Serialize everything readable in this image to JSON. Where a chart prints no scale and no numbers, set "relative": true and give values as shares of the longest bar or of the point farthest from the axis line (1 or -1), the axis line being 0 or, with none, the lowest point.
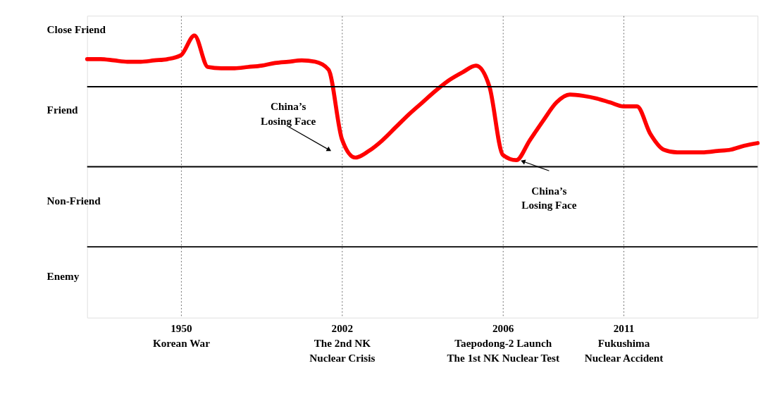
{
  "chart_data": {
    "type": "line",
    "relative": true,
    "categories": [
      null,
      null,
      null,
      null,
      null,
      null,
      null,
      "1950\nKorean War",
      null,
      null,
      null,
      null,
      null,
      null,
      null,
      null,
      null,
      null,
      null,
      "2002\nThe 2nd NK\nNuclear Crisis",
      null,
      null,
      null,
      null,
      null,
      null,
      null,
      null,
      null,
      null,
      null,
      "2006\nTaepodong-2 Launch\nThe 1st NK Nuclear Test",
      null,
      null,
      null,
      null,
      null,
      null,
      null,
      null,
      "2011\nFukushima\nNuclear Accident",
      null,
      null,
      null,
      null,
      null,
      null,
      null,
      null,
      null,
      null
    ],
    "series": [
      {
        "color": "#ff0000",
        "values": [
          0.82,
          0.82,
          0.81,
          0.8,
          0.8,
          0.81,
          0.82,
          0.85,
          1,
          0.76,
          0.75,
          0.75,
          0.76,
          0.77,
          0.79,
          0.8,
          0.81,
          0.8,
          0.74,
          0.21,
          0.07,
          0.12,
          0.2,
          0.3,
          0.4,
          0.49,
          0.58,
          0.66,
          0.72,
          0.77,
          0.61,
          0.09,
          0.05,
          0.2,
          0.35,
          0.49,
          0.55,
          0.54,
          0.52,
          0.49,
          0.46,
          0.46,
          0.25,
          0.13,
          0.11,
          0.11,
          0.11,
          0.12,
          0.13,
          0.16,
          0.18
        ]
      }
    ],
    "ref_lines": [
      {
        "axis": "y",
        "value": 0.61,
        "color": "#000000"
      },
      {
        "axis": "y",
        "value": 0,
        "color": "#000000"
      },
      {
        "axis": "y",
        "value": -0.61,
        "color": "#000000"
      }
    ],
    "annotations": [
      "Close Friend",
      "Friend",
      "Non-Friend",
      "Enemy",
      "China’s\nLosing Face",
      "China’s\nLosing Face"
    ],
    "grid": "x",
    "marker": "none",
    "line_style": "solid"
  }
}
